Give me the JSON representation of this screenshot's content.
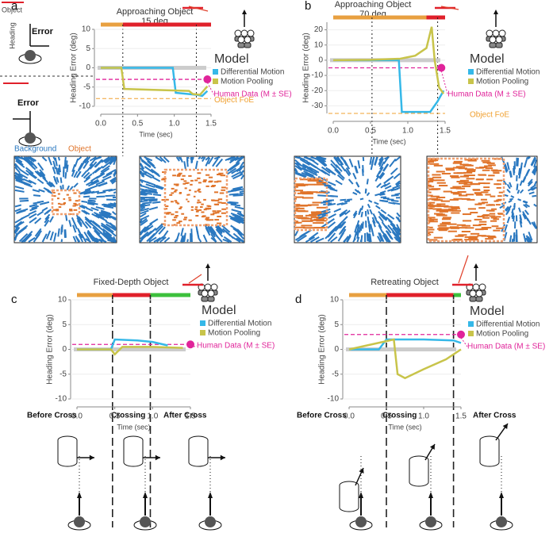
{
  "panel_labels": [
    "a",
    "b",
    "c",
    "d"
  ],
  "key": {
    "object": "Object",
    "heading": "Heading",
    "error": "Error",
    "background": "Background"
  },
  "crossing_labels": [
    "Before Cross",
    "Crossing",
    "After Cross"
  ],
  "chart_data": [
    {
      "type": "line",
      "title": "Approaching Object",
      "subtitle": "15 deg",
      "xlabel": "Time (sec)",
      "ylabel": "Heading Error (deg)",
      "model_label": "Model",
      "xlim": [
        0,
        1.5
      ],
      "ylim": [
        -10,
        10
      ],
      "xticks": [
        {
          "value": 0,
          "label": "0.0"
        },
        0.5,
        {
          "value": 1,
          "label": "1.0"
        },
        1.5
      ],
      "yticks": [
        10,
        5,
        0,
        -5,
        -10
      ],
      "phases": [
        {
          "start": 0,
          "end": 0.3,
          "color": "#e8a040"
        },
        {
          "start": 0.3,
          "end": 1.5,
          "color": "#e0202a"
        }
      ],
      "snapshot_times": [
        0.3,
        1.3
      ],
      "series": [
        {
          "name": "Differential Motion",
          "color": "#35b8e8",
          "x": [
            0,
            0.98,
            1.02,
            1.3,
            1.38,
            1.45
          ],
          "values": [
            0,
            0,
            -6.5,
            -7,
            -7.3,
            -6
          ]
        },
        {
          "name": "Motion Pooling",
          "color": "#c8c44a",
          "x": [
            0,
            0.28,
            0.32,
            1.2,
            1.25,
            1.35,
            1.45
          ],
          "values": [
            0,
            0,
            -5.5,
            -6,
            -6.8,
            -7,
            -4.8
          ]
        }
      ],
      "human_data": {
        "label": "Human Data (M ± SE)",
        "x": 1.45,
        "value": -3,
        "color": "#e0249a"
      },
      "object_foe": {
        "label": "Object FoE",
        "value": -8,
        "color": "#f0a030"
      }
    },
    {
      "type": "line",
      "title": "Approaching Object",
      "subtitle": "70 deg",
      "xlabel": "Time (sec)",
      "ylabel": "Heading Error (deg)",
      "model_label": "Model",
      "xlim": [
        0,
        1.5
      ],
      "ylim": [
        -35,
        25
      ],
      "xticks": [
        {
          "value": 0,
          "label": "0.0"
        },
        0.5,
        {
          "value": 1,
          "label": "1.0"
        },
        1.5
      ],
      "yticks": [
        20,
        10,
        0,
        -10,
        -20,
        -30
      ],
      "phases": [
        {
          "start": 0,
          "end": 1.25,
          "color": "#e8a040"
        },
        {
          "start": 1.25,
          "end": 1.5,
          "color": "#e0202a"
        }
      ],
      "snapshot_times": [
        0.52,
        1.4
      ],
      "series": [
        {
          "name": "Differential Motion",
          "color": "#35b8e8",
          "x": [
            0,
            0.88,
            0.92,
            1.3,
            1.4,
            1.48
          ],
          "values": [
            0,
            0,
            -34,
            -34,
            -27,
            -20
          ]
        },
        {
          "name": "Motion Pooling",
          "color": "#c8c44a",
          "x": [
            0,
            0.5,
            0.9,
            1.1,
            1.25,
            1.32,
            1.36,
            1.42,
            1.48
          ],
          "values": [
            0,
            0.3,
            1,
            3,
            8,
            22,
            0,
            -18,
            -22
          ]
        }
      ],
      "human_data": {
        "label": "Human Data (M ± SE)",
        "x": 1.45,
        "value": -5,
        "color": "#e0249a"
      },
      "object_foe": {
        "label": "Object FoE",
        "value": -35,
        "color": "#f0a030"
      }
    },
    {
      "type": "line",
      "title": "Fixed-Depth Object",
      "xlabel": "Time (sec)",
      "ylabel": "Heading Error (deg)",
      "model_label": "Model",
      "xlim": [
        0,
        1.5
      ],
      "ylim": [
        -10,
        10
      ],
      "xticks": [
        {
          "value": 0,
          "label": "0.0"
        },
        0.5,
        {
          "value": 1,
          "label": "1.0"
        },
        1.5
      ],
      "yticks": [
        10,
        5,
        0,
        -5,
        -10
      ],
      "phases": [
        {
          "start": 0,
          "end": 0.47,
          "color": "#e8a040"
        },
        {
          "start": 0.47,
          "end": 0.97,
          "color": "#e0202a"
        },
        {
          "start": 0.97,
          "end": 1.5,
          "color": "#3cc03c"
        }
      ],
      "snapshot_times": [
        0.47,
        0.97
      ],
      "series": [
        {
          "name": "Differential Motion",
          "color": "#35b8e8",
          "x": [
            0,
            0.45,
            0.5,
            0.8,
            1,
            1.2
          ],
          "values": [
            0,
            0,
            2,
            1.8,
            1.5,
            0.8
          ]
        },
        {
          "name": "Motion Pooling",
          "color": "#c8c44a",
          "x": [
            0,
            0.45,
            0.5,
            0.6,
            1,
            1.4
          ],
          "values": [
            0,
            0,
            -1,
            0.5,
            0.5,
            0.3
          ]
        }
      ],
      "human_data": {
        "label": "Human Data (M ± SE)",
        "x": 1.5,
        "value": 1,
        "color": "#e0249a"
      }
    },
    {
      "type": "line",
      "title": "Retreating Object",
      "xlabel": "Time (sec)",
      "ylabel": "Heading Error (deg)",
      "model_label": "Model",
      "xlim": [
        0,
        1.5
      ],
      "ylim": [
        -10,
        10
      ],
      "xticks": [
        {
          "value": 0,
          "label": "0.0"
        },
        0.5,
        {
          "value": 1,
          "label": "1.0"
        },
        1.5
      ],
      "yticks": [
        10,
        5,
        0,
        -5,
        -10
      ],
      "phases": [
        {
          "start": 0,
          "end": 0.5,
          "color": "#e8a040"
        },
        {
          "start": 0.5,
          "end": 1.4,
          "color": "#e0202a"
        },
        {
          "start": 1.4,
          "end": 1.5,
          "color": "#3cc03c"
        }
      ],
      "snapshot_times": [
        0.5,
        1.4
      ],
      "series": [
        {
          "name": "Differential Motion",
          "color": "#35b8e8",
          "x": [
            0,
            0.4,
            0.5,
            1,
            1.4,
            1.5
          ],
          "values": [
            0,
            0,
            2,
            2,
            1.8,
            1.3
          ]
        },
        {
          "name": "Motion Pooling",
          "color": "#c8c44a",
          "x": [
            0,
            0.3,
            0.6,
            0.65,
            0.75,
            1,
            1.3,
            1.5
          ],
          "values": [
            0,
            1,
            2,
            -5,
            -5.8,
            -4,
            -2,
            0
          ]
        }
      ],
      "human_data": {
        "label": "Human Data (M ± SE)",
        "x": 1.5,
        "value": 3,
        "color": "#e0249a"
      }
    }
  ]
}
